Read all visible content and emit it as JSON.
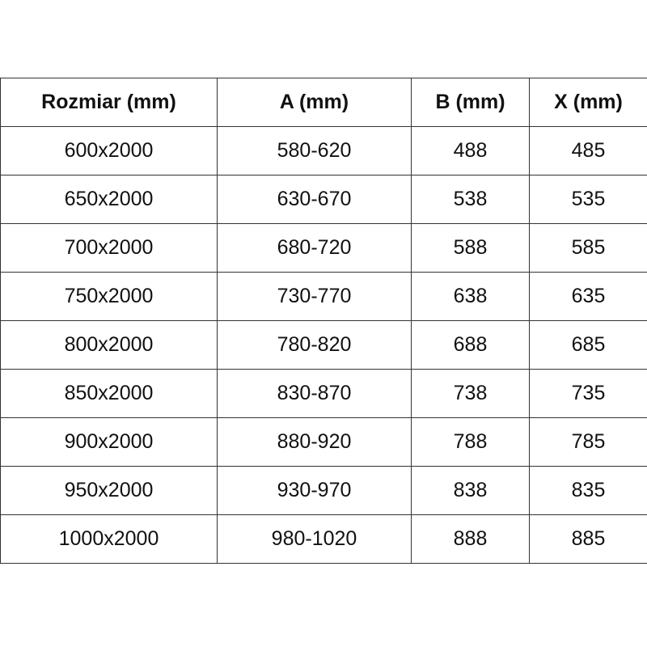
{
  "table": {
    "headers": [
      "Rozmiar (mm)",
      "A (mm)",
      "B (mm)",
      "X (mm)"
    ],
    "rows": [
      [
        "600x2000",
        "580-620",
        "488",
        "485"
      ],
      [
        "650x2000",
        "630-670",
        "538",
        "535"
      ],
      [
        "700x2000",
        "680-720",
        "588",
        "585"
      ],
      [
        "750x2000",
        "730-770",
        "638",
        "635"
      ],
      [
        "800x2000",
        "780-820",
        "688",
        "685"
      ],
      [
        "850x2000",
        "830-870",
        "738",
        "735"
      ],
      [
        "900x2000",
        "880-920",
        "788",
        "785"
      ],
      [
        "950x2000",
        "930-970",
        "838",
        "835"
      ],
      [
        "1000x2000",
        "980-1020",
        "888",
        "885"
      ]
    ]
  }
}
